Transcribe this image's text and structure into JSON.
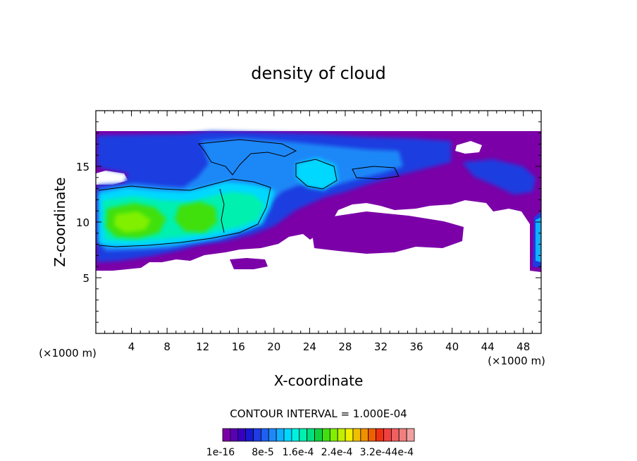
{
  "chart_data": {
    "type": "heatmap",
    "title": "density of cloud",
    "xlabel": "X-coordinate",
    "ylabel": "Z-coordinate",
    "x_unit_left": "(×1000 m)",
    "x_unit_right": "(×1000 m)",
    "xlim": [
      0,
      50
    ],
    "ylim": [
      0,
      20
    ],
    "x_ticks": [
      4,
      8,
      12,
      16,
      20,
      24,
      28,
      32,
      36,
      40,
      44,
      48
    ],
    "y_ticks": [
      5,
      10,
      15
    ],
    "grid": false,
    "contour_interval_text": "CONTOUR INTERVAL = 1.000E-04",
    "colorbar": {
      "colors": [
        "#7b00a8",
        "#5a00b4",
        "#3800c0",
        "#1818d0",
        "#1e3ce0",
        "#1e60f0",
        "#1e88f8",
        "#10b0ff",
        "#00d8ff",
        "#00f0e0",
        "#00f0b0",
        "#00e080",
        "#10d040",
        "#40e010",
        "#80f000",
        "#c0f000",
        "#f0f000",
        "#f0c000",
        "#f09000",
        "#f06000",
        "#f03010",
        "#f04040",
        "#f06060",
        "#f08080",
        "#f0a0a0"
      ],
      "labels": [
        "1e-16",
        "8e-5",
        "1.6e-4",
        "2.4e-4",
        "3.2e-4",
        "4e-4"
      ]
    }
  }
}
